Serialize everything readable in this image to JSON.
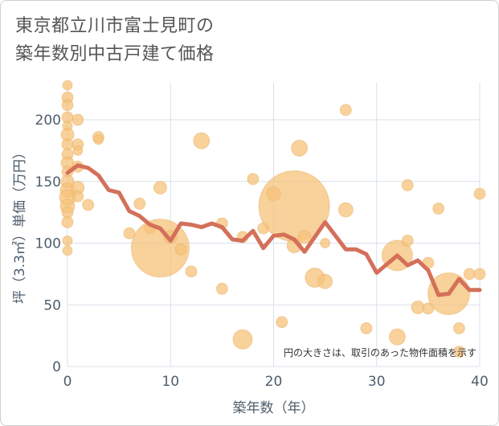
{
  "title_line1": "東京都立川市富士見町の",
  "title_line2": "築年数別中古戸建て価格",
  "colors": {
    "bubble": "#f5c27a",
    "line": "#d4705a",
    "grid": "#d9e1ea",
    "text": "#4d5d6c"
  },
  "chart_data": {
    "type": "scatter",
    "title": "東京都立川市富士見町の築年数別中古戸建て価格",
    "xlabel": "築年数（年）",
    "ylabel": "坪（3.3㎡）単価（万円）",
    "xlim": [
      0,
      40
    ],
    "ylim": [
      0,
      230
    ],
    "xticks": [
      0,
      10,
      20,
      30,
      40
    ],
    "yticks": [
      0,
      50,
      100,
      150,
      200
    ],
    "grid": true,
    "annotation": "円の大きさは、取引のあった物件面積を示す",
    "bubbles": [
      {
        "x": 0,
        "y": 228,
        "r": 6
      },
      {
        "x": 0,
        "y": 218,
        "r": 7
      },
      {
        "x": 0,
        "y": 212,
        "r": 7
      },
      {
        "x": 0,
        "y": 202,
        "r": 7
      },
      {
        "x": 0,
        "y": 195,
        "r": 6
      },
      {
        "x": 0,
        "y": 188,
        "r": 8
      },
      {
        "x": 0,
        "y": 180,
        "r": 7
      },
      {
        "x": 0,
        "y": 172,
        "r": 7
      },
      {
        "x": 0,
        "y": 165,
        "r": 8
      },
      {
        "x": 0,
        "y": 158,
        "r": 7
      },
      {
        "x": 0,
        "y": 150,
        "r": 8
      },
      {
        "x": 0,
        "y": 143,
        "r": 9
      },
      {
        "x": 0,
        "y": 137,
        "r": 10
      },
      {
        "x": 0,
        "y": 130,
        "r": 9
      },
      {
        "x": 0,
        "y": 125,
        "r": 7
      },
      {
        "x": 0,
        "y": 117,
        "r": 7
      },
      {
        "x": 0,
        "y": 102,
        "r": 6
      },
      {
        "x": 0,
        "y": 94,
        "r": 6
      },
      {
        "x": 1,
        "y": 200,
        "r": 7
      },
      {
        "x": 1,
        "y": 180,
        "r": 7
      },
      {
        "x": 1,
        "y": 175,
        "r": 6
      },
      {
        "x": 1,
        "y": 162,
        "r": 7
      },
      {
        "x": 1,
        "y": 145,
        "r": 8
      },
      {
        "x": 1,
        "y": 138,
        "r": 7
      },
      {
        "x": 2,
        "y": 131,
        "r": 7
      },
      {
        "x": 3,
        "y": 186,
        "r": 7
      },
      {
        "x": 3,
        "y": 184,
        "r": 6
      },
      {
        "x": 6,
        "y": 108,
        "r": 7
      },
      {
        "x": 7,
        "y": 132,
        "r": 7
      },
      {
        "x": 8,
        "y": 112,
        "r": 7
      },
      {
        "x": 9,
        "y": 145,
        "r": 8
      },
      {
        "x": 9,
        "y": 96,
        "r": 36
      },
      {
        "x": 10,
        "y": 105,
        "r": 8
      },
      {
        "x": 11,
        "y": 95,
        "r": 7
      },
      {
        "x": 12,
        "y": 77,
        "r": 7
      },
      {
        "x": 13,
        "y": 183,
        "r": 10
      },
      {
        "x": 15,
        "y": 116,
        "r": 7
      },
      {
        "x": 15,
        "y": 63,
        "r": 7
      },
      {
        "x": 17,
        "y": 105,
        "r": 7
      },
      {
        "x": 17,
        "y": 22,
        "r": 12
      },
      {
        "x": 18,
        "y": 152,
        "r": 7
      },
      {
        "x": 19,
        "y": 112,
        "r": 7
      },
      {
        "x": 20,
        "y": 140,
        "r": 9
      },
      {
        "x": 20.8,
        "y": 36,
        "r": 7
      },
      {
        "x": 22,
        "y": 130,
        "r": 44
      },
      {
        "x": 22,
        "y": 98,
        "r": 9
      },
      {
        "x": 22.5,
        "y": 177,
        "r": 10
      },
      {
        "x": 23,
        "y": 105,
        "r": 8
      },
      {
        "x": 24,
        "y": 72,
        "r": 12
      },
      {
        "x": 25,
        "y": 69,
        "r": 9
      },
      {
        "x": 25,
        "y": 100,
        "r": 6
      },
      {
        "x": 27,
        "y": 208,
        "r": 7
      },
      {
        "x": 27,
        "y": 127,
        "r": 9
      },
      {
        "x": 29,
        "y": 31,
        "r": 7
      },
      {
        "x": 32,
        "y": 90,
        "r": 19
      },
      {
        "x": 32,
        "y": 24,
        "r": 10
      },
      {
        "x": 33,
        "y": 147,
        "r": 7
      },
      {
        "x": 33,
        "y": 102,
        "r": 7
      },
      {
        "x": 34,
        "y": 48,
        "r": 8
      },
      {
        "x": 35,
        "y": 84,
        "r": 7
      },
      {
        "x": 35,
        "y": 47,
        "r": 7
      },
      {
        "x": 36,
        "y": 128,
        "r": 7
      },
      {
        "x": 37,
        "y": 59,
        "r": 26
      },
      {
        "x": 38,
        "y": 31,
        "r": 7
      },
      {
        "x": 38,
        "y": 12,
        "r": 7
      },
      {
        "x": 39,
        "y": 75,
        "r": 7
      },
      {
        "x": 40,
        "y": 140,
        "r": 7
      },
      {
        "x": 40,
        "y": 75,
        "r": 7
      }
    ],
    "series": [
      {
        "type": "line",
        "x": [
          0,
          1,
          2,
          3,
          4,
          5,
          6,
          7,
          8,
          9,
          10,
          11,
          12,
          13,
          14,
          15,
          16,
          17,
          18,
          19,
          20,
          21,
          22,
          23,
          24,
          25,
          26,
          27,
          28,
          29,
          30,
          31,
          32,
          33,
          34,
          35,
          36,
          37,
          38,
          39,
          40
        ],
        "y": [
          157,
          163,
          161,
          155,
          143,
          141,
          126,
          122,
          115,
          112,
          102,
          116,
          115,
          113,
          116,
          113,
          103,
          102,
          110,
          96,
          106,
          107,
          103,
          93,
          105,
          117,
          106,
          95,
          95,
          91,
          76,
          83,
          90,
          82,
          86,
          78,
          58,
          59,
          71,
          62,
          62
        ]
      }
    ]
  }
}
